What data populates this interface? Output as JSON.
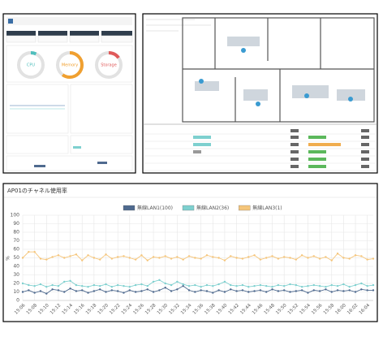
{
  "dashboard": {
    "gauges": [
      {
        "label": "CPU",
        "value": 7,
        "color": "#4fbfbd"
      },
      {
        "label": "Memory",
        "value": 60,
        "color": "#f0a030"
      },
      {
        "label": "Storage",
        "value": 15,
        "color": "#e05a5a"
      }
    ]
  },
  "chart_data": {
    "type": "line",
    "title": "AP01のチャネル使用率",
    "y_label": "%",
    "categories": [
      "15:06",
      null,
      "15:08",
      null,
      "15:10",
      null,
      "15:12",
      null,
      "15:14",
      null,
      "15:16",
      null,
      "15:18",
      null,
      "15:20",
      null,
      "15:22",
      null,
      "15:24",
      null,
      "15:26",
      null,
      "15:28",
      null,
      "15:30",
      null,
      "15:32",
      null,
      "15:34",
      null,
      "15:36",
      null,
      "15:38",
      null,
      "15:40",
      null,
      "15:42",
      null,
      "15:44",
      null,
      "15:46",
      null,
      "15:48",
      null,
      "15:50",
      null,
      "15:52",
      null,
      "15:54",
      null,
      "15:56",
      null,
      "15:58",
      null,
      "16:00",
      null,
      "16:02",
      null,
      "16:04",
      null
    ],
    "series": [
      {
        "name": "無線LAN1(100)",
        "color": "#4f6a8f",
        "values": [
          10,
          12,
          9,
          11,
          8,
          13,
          12,
          10,
          14,
          11,
          12,
          9,
          11,
          13,
          10,
          12,
          11,
          9,
          12,
          10,
          11,
          13,
          10,
          12,
          15,
          11,
          13,
          17,
          12,
          10,
          12,
          11,
          9,
          12,
          10,
          13,
          11,
          12,
          10,
          11,
          12,
          10,
          13,
          11,
          12,
          10,
          11,
          12,
          9,
          12,
          11,
          13,
          10,
          12,
          11,
          12,
          10,
          13,
          12,
          12
        ]
      },
      {
        "name": "無線LAN2(36)",
        "color": "#7ed0cf",
        "values": [
          20,
          18,
          17,
          19,
          16,
          18,
          17,
          22,
          23,
          18,
          17,
          16,
          18,
          17,
          19,
          16,
          18,
          17,
          16,
          18,
          19,
          17,
          22,
          24,
          20,
          18,
          22,
          19,
          17,
          18,
          16,
          18,
          17,
          19,
          22,
          18,
          17,
          18,
          16,
          17,
          18,
          17,
          16,
          18,
          17,
          19,
          18,
          16,
          17,
          18,
          17,
          16,
          18,
          17,
          19,
          16,
          18,
          20,
          17,
          18
        ]
      },
      {
        "name": "無線LAN3(1)",
        "color": "#f5c57a",
        "values": [
          50,
          57,
          57,
          49,
          48,
          51,
          53,
          50,
          52,
          54,
          47,
          53,
          50,
          48,
          54,
          49,
          51,
          52,
          50,
          48,
          53,
          47,
          51,
          50,
          52,
          49,
          51,
          48,
          52,
          50,
          49,
          53,
          51,
          50,
          47,
          52,
          50,
          49,
          51,
          53,
          48,
          50,
          52,
          49,
          51,
          50,
          48,
          53,
          50,
          52,
          49,
          51,
          47,
          55,
          50,
          49,
          53,
          52,
          48,
          49
        ]
      }
    ],
    "ylim": [
      0,
      100
    ],
    "yticks": [
      0,
      10,
      20,
      30,
      40,
      50,
      60,
      70,
      80,
      90,
      100
    ],
    "grid": true,
    "legend": "top"
  }
}
